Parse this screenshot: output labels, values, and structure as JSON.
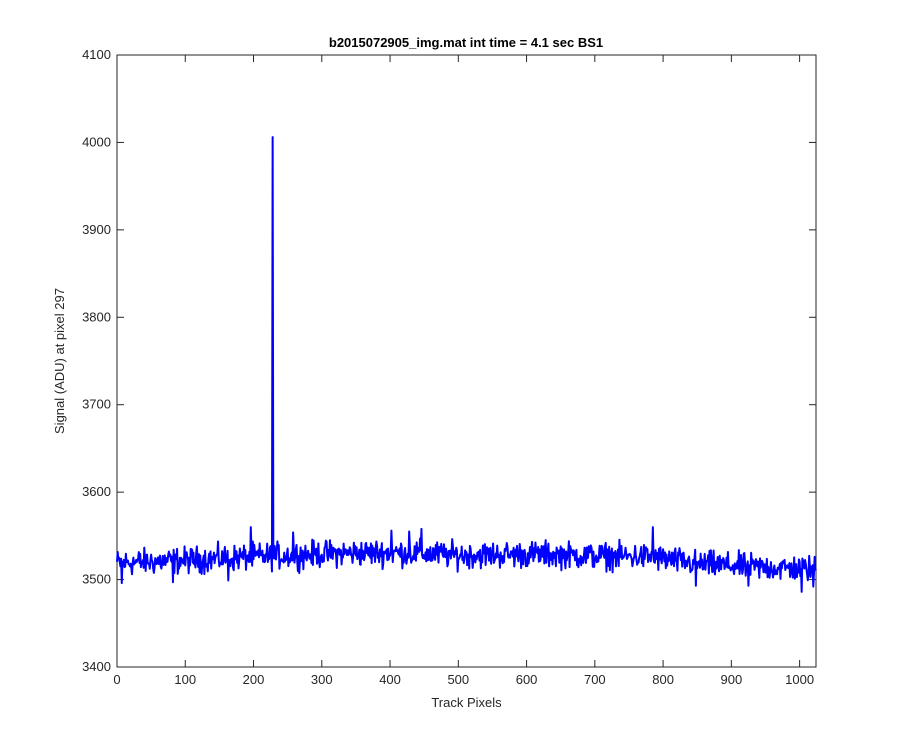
{
  "chart_data": {
    "type": "line",
    "title": "b2015072905_img.mat int time = 4.1 sec   BS1",
    "xlabel": "Track Pixels",
    "ylabel": "Signal (ADU) at pixel 297",
    "xlim": [
      0,
      1024
    ],
    "ylim": [
      3400,
      4100
    ],
    "xticks": [
      0,
      100,
      200,
      300,
      400,
      500,
      600,
      700,
      800,
      900,
      1000
    ],
    "yticks": [
      3400,
      3500,
      3600,
      3700,
      3800,
      3900,
      4000,
      4100
    ],
    "grid": false,
    "line_color": "#0000ff",
    "series": [
      {
        "baseline_segments": [
          [
            0,
            3519
          ],
          [
            100,
            3522
          ],
          [
            200,
            3526
          ],
          [
            320,
            3530
          ],
          [
            400,
            3531
          ],
          [
            500,
            3528
          ],
          [
            620,
            3529
          ],
          [
            700,
            3527
          ],
          [
            780,
            3526
          ],
          [
            850,
            3518
          ],
          [
            940,
            3514
          ],
          [
            1024,
            3512
          ]
        ],
        "noise_amplitude": 11,
        "spike": {
          "x": 228,
          "y": 4006
        },
        "notable_points": [
          {
            "x": 7,
            "y": 3496
          },
          {
            "x": 82,
            "y": 3497
          },
          {
            "x": 163,
            "y": 3499
          },
          {
            "x": 196,
            "y": 3560
          },
          {
            "x": 258,
            "y": 3554
          },
          {
            "x": 402,
            "y": 3556
          },
          {
            "x": 428,
            "y": 3555
          },
          {
            "x": 446,
            "y": 3558
          },
          {
            "x": 785,
            "y": 3560
          },
          {
            "x": 848,
            "y": 3493
          },
          {
            "x": 925,
            "y": 3493
          },
          {
            "x": 1003,
            "y": 3486
          },
          {
            "x": 1020,
            "y": 3492
          }
        ]
      }
    ]
  }
}
